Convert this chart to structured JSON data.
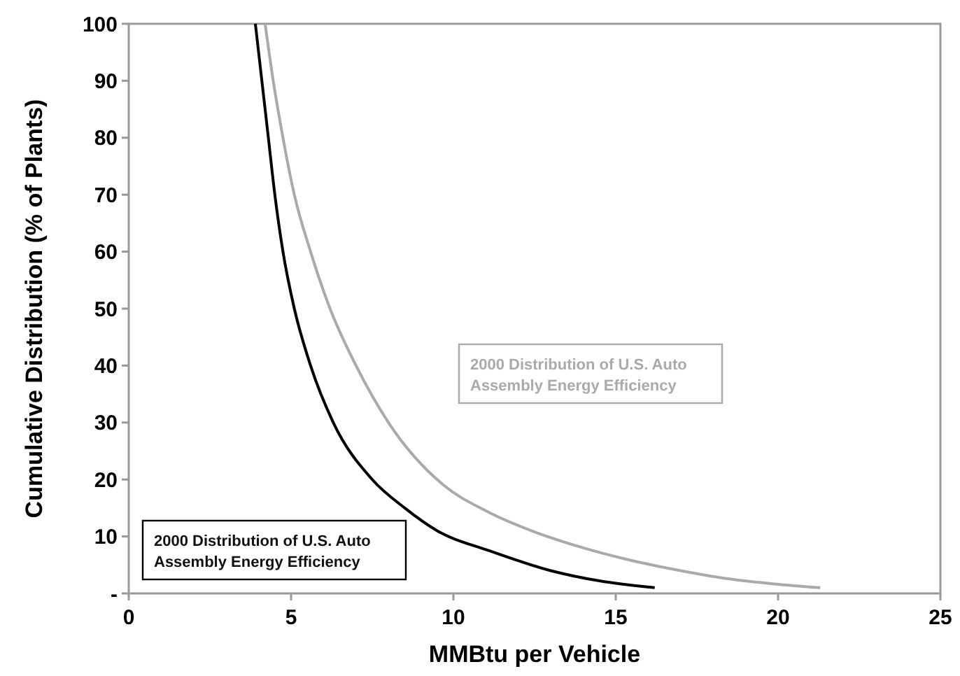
{
  "chart_data": {
    "type": "line",
    "xlabel": "MMBtu per Vehicle",
    "ylabel": "Cumulative Distribution (% of Plants)",
    "xlim": [
      0,
      25
    ],
    "xticks": [
      0,
      5,
      10,
      15,
      20,
      25
    ],
    "ylim": [
      0,
      100
    ],
    "yticks": [
      {
        "value": 0,
        "label": "-"
      },
      10,
      20,
      30,
      40,
      50,
      60,
      70,
      80,
      90,
      100
    ],
    "grid": false,
    "legend": false,
    "marker": "none",
    "line_style": "solid",
    "series": [
      {
        "name": "2000 Distribution of U.S. Auto Assembly Energy Efficiency",
        "color": "#000000",
        "x": [
          3.9,
          4.1,
          4.3,
          4.5,
          4.75,
          5.1,
          5.6,
          6.3,
          7.5,
          8.5,
          9.5,
          11.1,
          13,
          14.5,
          16.2
        ],
        "values": [
          100,
          90,
          80,
          70,
          60,
          50,
          40,
          30,
          20,
          15,
          11,
          7.5,
          4,
          2.2,
          1
        ]
      },
      {
        "name": "2000 Distribution of U.S. Auto Assembly Energy Efficiency",
        "color": "#aaaaaa",
        "x": [
          4.2,
          4.45,
          4.75,
          5.1,
          5.6,
          6.2,
          7.0,
          8.0,
          9.7,
          11,
          12.5,
          14,
          15.4,
          17,
          18.3,
          20,
          21.3
        ],
        "values": [
          100,
          90,
          80,
          70,
          60,
          50,
          40,
          30,
          19,
          14.5,
          10.8,
          8,
          5.9,
          4,
          2.7,
          1.6,
          1
        ]
      }
    ]
  }
}
